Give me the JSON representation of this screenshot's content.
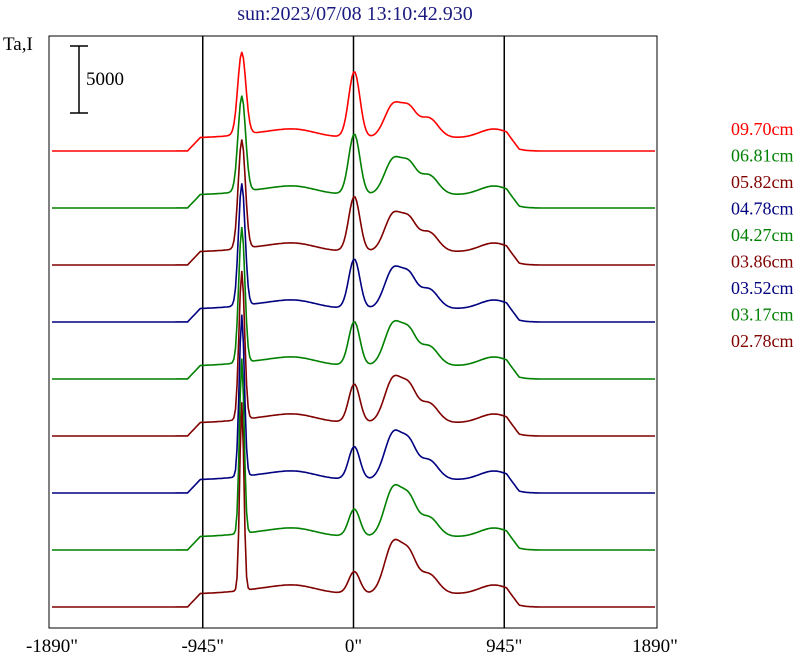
{
  "chart_data": {
    "type": "line",
    "title": "sun:2023/07/08 13:10:42.930",
    "ylabel": "Ta,I",
    "scale_bar_label": "5000",
    "scale_bar_value": 5000,
    "xlim": [
      -1890,
      1890
    ],
    "x_ticks": [
      {
        "value": -1890,
        "label": "-1890\""
      },
      {
        "value": -945,
        "label": "-945\""
      },
      {
        "value": 0,
        "label": "0\""
      },
      {
        "value": 945,
        "label": "945\""
      },
      {
        "value": 1890,
        "label": "1890\""
      }
    ],
    "vertical_lines": [
      -945,
      0,
      945
    ],
    "series": [
      {
        "name": "09.70cm",
        "color": "#ff0000",
        "baseline": 0
      },
      {
        "name": "06.81cm",
        "color": "#008000",
        "baseline": 1
      },
      {
        "name": "05.82cm",
        "color": "#800000",
        "baseline": 2
      },
      {
        "name": "04.78cm",
        "color": "#000080",
        "baseline": 3
      },
      {
        "name": "04.27cm",
        "color": "#008000",
        "baseline": 4
      },
      {
        "name": "03.86cm",
        "color": "#800000",
        "baseline": 5
      },
      {
        "name": "03.52cm",
        "color": "#000080",
        "baseline": 6
      },
      {
        "name": "03.17cm",
        "color": "#008000",
        "baseline": 7
      },
      {
        "name": "02.78cm",
        "color": "#800000",
        "baseline": 8
      }
    ]
  }
}
